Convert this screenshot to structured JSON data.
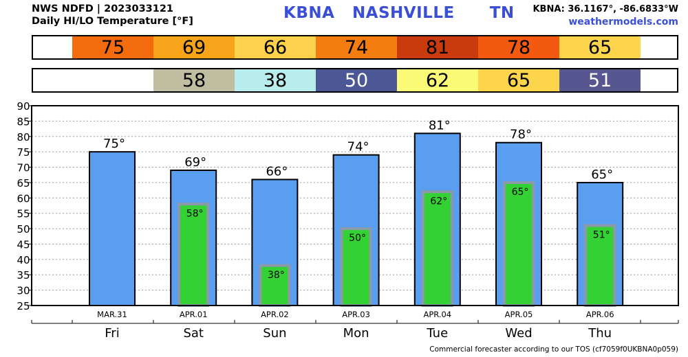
{
  "header": {
    "source": "NWS NDFD | 2023033121",
    "title": "Daily HI/LO Temperature [°F]",
    "station_code": "KBNA",
    "station_name": "NASHVILLE",
    "state": "TN",
    "coords": "KBNA: 36.1167°, -86.6833°W",
    "site": "weathermodels.com"
  },
  "hi_strip": [
    {
      "label": "75",
      "color": "#f36b0c"
    },
    {
      "label": "69",
      "color": "#f7a41b"
    },
    {
      "label": "66",
      "color": "#fdd14b"
    },
    {
      "label": "74",
      "color": "#f57d10"
    },
    {
      "label": "81",
      "color": "#c93a0c"
    },
    {
      "label": "78",
      "color": "#f45a0f"
    },
    {
      "label": "65",
      "color": "#fdd54c"
    }
  ],
  "lo_strip": [
    {
      "label": "",
      "color": "#ffffff"
    },
    {
      "label": "58",
      "color": "#bfbea0"
    },
    {
      "label": "38",
      "color": "#b9ecec"
    },
    {
      "label": "50",
      "color": "#4c5795"
    },
    {
      "label": "62",
      "color": "#fbfb78"
    },
    {
      "label": "65",
      "color": "#fdd54c"
    },
    {
      "label": "51",
      "color": "#565790"
    }
  ],
  "colors": {
    "hi_bar": "#5a9ef0",
    "lo_bar": "#33d133",
    "lo_bar_border": "#8a9aa8",
    "lo_text_dark": "#000000",
    "lo_text_light": "#ffffff"
  },
  "chart_data": {
    "type": "bar",
    "categories": [
      "MAR.31",
      "APR.01",
      "APR.02",
      "APR.03",
      "APR.04",
      "APR.05",
      "APR.06"
    ],
    "days": [
      "Fri",
      "Sat",
      "Sun",
      "Mon",
      "Tue",
      "Wed",
      "Thu"
    ],
    "series": [
      {
        "values": [
          75,
          69,
          66,
          74,
          81,
          78,
          65
        ],
        "labels": [
          "75°",
          "69°",
          "66°",
          "74°",
          "81°",
          "78°",
          "65°"
        ]
      },
      {
        "values": [
          null,
          58,
          38,
          50,
          62,
          65,
          51
        ],
        "labels": [
          "",
          "58°",
          "38°",
          "50°",
          "62°",
          "65°",
          "51°"
        ]
      }
    ],
    "yticks": [
      "25",
      "30",
      "35",
      "40",
      "45",
      "50",
      "55",
      "60",
      "65",
      "70",
      "75",
      "80",
      "85",
      "90"
    ],
    "ylim": [
      25,
      90
    ],
    "grid": true
  },
  "footer": "Commercial forecaster according to our TOS (cf7059f0UKBNA0p059)"
}
